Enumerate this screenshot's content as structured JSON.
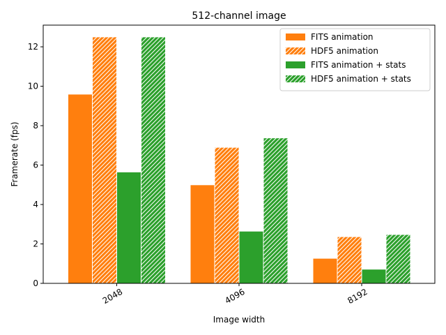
{
  "chart_data": {
    "type": "bar",
    "title": "512-channel image",
    "xlabel": "Image width",
    "ylabel": "Framerate (fps)",
    "categories": [
      "2048",
      "4096",
      "8192"
    ],
    "ylim": [
      0,
      13.1
    ],
    "yticks": [
      0,
      2,
      4,
      6,
      8,
      10,
      12
    ],
    "grid": false,
    "legend_position": "top-right",
    "xtick_rotation": 30,
    "series": [
      {
        "name": "FITS animation",
        "color": "#ff7f0e",
        "hatch": false,
        "values": [
          9.6,
          5.0,
          1.27
        ]
      },
      {
        "name": "HDF5 animation",
        "color": "#ff7f0e",
        "hatch": true,
        "values": [
          12.5,
          6.9,
          2.37
        ]
      },
      {
        "name": "FITS animation + stats",
        "color": "#2ca02c",
        "hatch": false,
        "values": [
          5.65,
          2.65,
          0.72
        ]
      },
      {
        "name": "HDF5 animation + stats",
        "color": "#2ca02c",
        "hatch": true,
        "values": [
          12.5,
          7.38,
          2.48
        ]
      }
    ]
  }
}
